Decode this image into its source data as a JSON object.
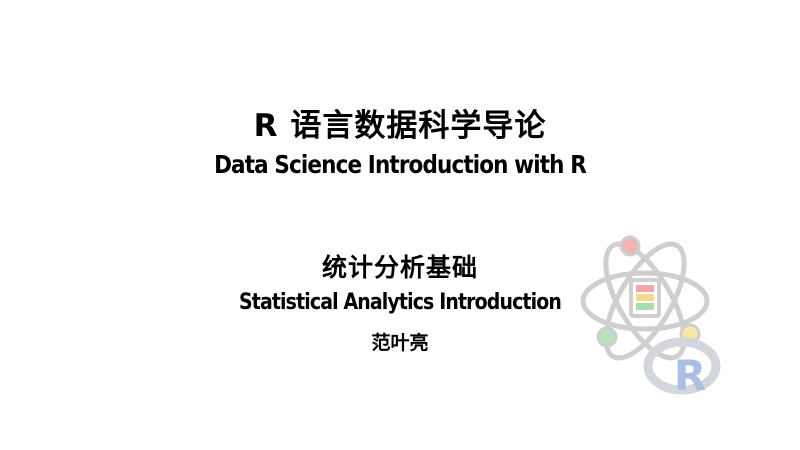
{
  "slide": {
    "title_cn": "R 语言数据科学导论",
    "title_en": "Data Science Introduction with R",
    "subtitle_cn": "统计分析基础",
    "subtitle_en": "Statistical Analytics Introduction",
    "author": "范叶亮"
  },
  "logo": {
    "icon": "atom-r-logo-icon",
    "colors": {
      "orbit": "#cfcfcf",
      "electron_pink": "#f2b3b5",
      "electron_green": "#b7e0c3",
      "electron_yellow": "#f7e7a8",
      "stripe_red": "#f3a7a7",
      "stripe_yellow": "#f6d98a",
      "stripe_green": "#a8dcb2",
      "r_ring": "#d3d6dc",
      "r_letter": "#a9bfe3"
    },
    "r_letter": "R"
  }
}
